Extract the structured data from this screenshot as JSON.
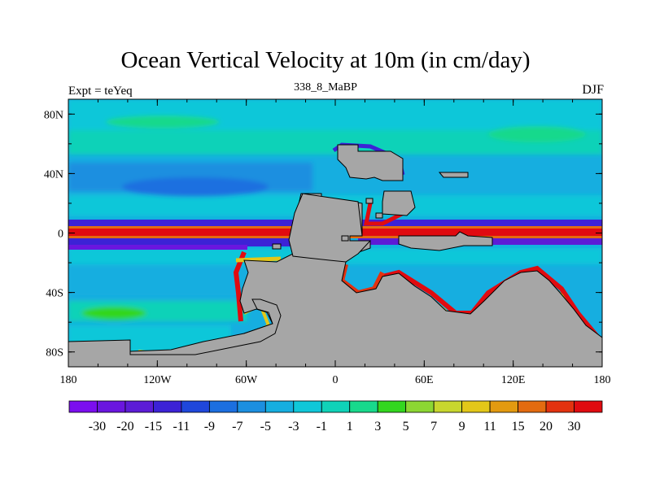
{
  "chart_data": {
    "type": "heatmap",
    "title": "Ocean Vertical Velocity at 10m (in cm/day)",
    "subtitle": "338_8_MaBP",
    "left_label": "Expt = teYeq",
    "right_label": "DJF",
    "x_range": [
      -180,
      180
    ],
    "y_range": [
      -90,
      90
    ],
    "x_ticks": [
      {
        "value": -180,
        "label": "180"
      },
      {
        "value": -120,
        "label": "120W"
      },
      {
        "value": -60,
        "label": "60W"
      },
      {
        "value": 0,
        "label": "0"
      },
      {
        "value": 60,
        "label": "60E"
      },
      {
        "value": 120,
        "label": "120E"
      },
      {
        "value": 180,
        "label": "180"
      }
    ],
    "y_ticks": [
      {
        "value": 80,
        "label": "80N"
      },
      {
        "value": 40,
        "label": "40N"
      },
      {
        "value": 0,
        "label": "0"
      },
      {
        "value": -40,
        "label": "40S"
      },
      {
        "value": -80,
        "label": "80S"
      }
    ],
    "colorbar": {
      "colors": [
        "#7B0EEF",
        "#6A16DF",
        "#5C1CD6",
        "#3C22D6",
        "#1F47DB",
        "#1C6FE0",
        "#1C8FE0",
        "#16AEE0",
        "#10C7D9",
        "#10D2B8",
        "#18D98C",
        "#33D61F",
        "#8CD633",
        "#C8D62E",
        "#E3C719",
        "#E39A10",
        "#E36B10",
        "#E3320F",
        "#E00B10"
      ],
      "labels": [
        "-30",
        "-20",
        "-15",
        "-11",
        "-9",
        "-7",
        "-5",
        "-3",
        "-1",
        "1",
        "3",
        "5",
        "7",
        "9",
        "11",
        "15",
        "20",
        "30"
      ]
    },
    "land_color": "#A6A6A6",
    "ocean_base_color": "#16AEE0",
    "regions": {
      "continents": "schematic paleogeography: northern landmass near 20W-55E / 0-45N, large southern supercontinent spanning 110W-165E / 20S-90S, small northeastern islands near 55E-95E / 20N-70N",
      "equatorial_band": "strong upwelling (+30) along the equator, downwelling (-30) on both flanks"
    }
  }
}
